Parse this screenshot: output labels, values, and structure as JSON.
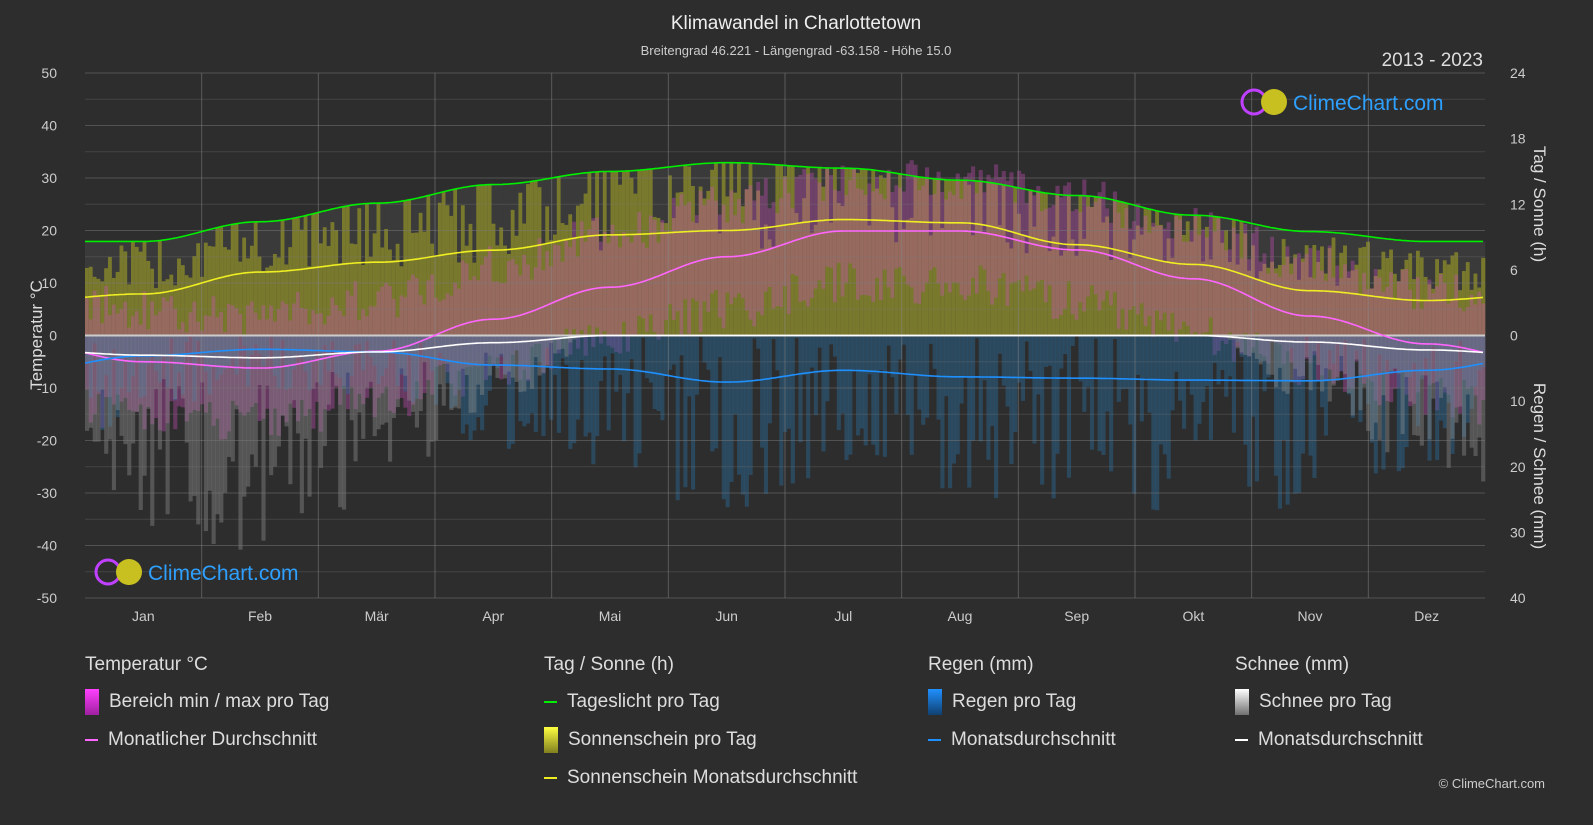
{
  "title": "Klimawandel in Charlottetown",
  "subtitle": "Breitengrad 46.221 - Längengrad -63.158 - Höhe 15.0",
  "year_range": "2013 - 2023",
  "brand": "ClimeChart.com",
  "copyright": "© ClimeChart.com",
  "colors": {
    "temp": "#ff66ff",
    "daylight": "#00ee00",
    "sunshine": "#eeee22",
    "rain": "#1e90ff",
    "snow": "#ffffff",
    "background": "#2d2d2d"
  },
  "chart_data": {
    "type": "line",
    "title": "Klimawandel in Charlottetown",
    "categories": [
      "Jan",
      "Feb",
      "Mär",
      "Apr",
      "Mai",
      "Jun",
      "Jul",
      "Aug",
      "Sep",
      "Okt",
      "Nov",
      "Dez"
    ],
    "y_left": {
      "label": "Temperatur °C",
      "range": [
        -50,
        50
      ],
      "ticks": [
        50,
        40,
        30,
        20,
        10,
        0,
        -10,
        -20,
        -30,
        -40,
        -50
      ]
    },
    "y_right_top": {
      "label": "Tag / Sonne (h)",
      "range": [
        0,
        24
      ],
      "ticks": [
        24,
        18,
        12,
        6,
        0
      ]
    },
    "y_right_bottom": {
      "label": "Regen / Schnee (mm)",
      "range": [
        0,
        40
      ],
      "ticks": [
        0,
        10,
        20,
        30,
        40
      ]
    },
    "grid": true,
    "series": [
      {
        "name": "Monatlicher Durchschnitt",
        "axis": "temp",
        "values": [
          -5.0,
          -6.2,
          -3.0,
          3.1,
          9.2,
          15.0,
          19.9,
          19.9,
          16.3,
          10.8,
          3.7,
          -1.6
        ]
      },
      {
        "name": "Tageslicht pro Tag",
        "axis": "hours",
        "values": [
          8.6,
          10.4,
          12.1,
          13.8,
          15.0,
          15.8,
          15.3,
          14.2,
          12.8,
          11.0,
          9.5,
          8.6
        ]
      },
      {
        "name": "Sonnenschein Monatsdurchschnitt",
        "axis": "hours",
        "values": [
          3.8,
          5.8,
          6.7,
          7.8,
          9.2,
          9.6,
          10.6,
          10.3,
          8.3,
          6.5,
          4.1,
          3.2
        ]
      },
      {
        "name": "Regen Monatsdurchschnitt",
        "axis": "mm",
        "values": [
          3.1,
          2.1,
          2.5,
          4.5,
          5.1,
          7.1,
          5.3,
          6.3,
          6.5,
          6.8,
          6.9,
          5.3
        ]
      },
      {
        "name": "Schnee Monatsdurchschnitt",
        "axis": "mm",
        "values": [
          3.0,
          3.4,
          2.5,
          1.1,
          0,
          0,
          0,
          0,
          0,
          0,
          1.0,
          2.2
        ]
      }
    ]
  },
  "legend": {
    "temp": {
      "title": "Temperatur °C",
      "range": "Bereich min / max pro Tag",
      "avg": "Monatlicher Durchschnitt"
    },
    "sun": {
      "title": "Tag / Sonne (h)",
      "daylight": "Tageslicht pro Tag",
      "sunshine": "Sonnenschein pro Tag",
      "avg": "Sonnenschein Monatsdurchschnitt"
    },
    "rain": {
      "title": "Regen (mm)",
      "daily": "Regen pro Tag",
      "avg": "Monatsdurchschnitt"
    },
    "snow": {
      "title": "Schnee (mm)",
      "daily": "Schnee pro Tag",
      "avg": "Monatsdurchschnitt"
    }
  }
}
